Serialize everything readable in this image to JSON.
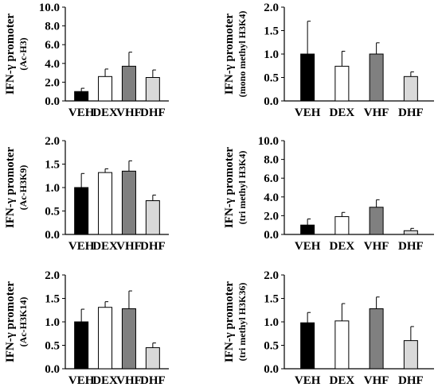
{
  "colors": {
    "VEH": "#000000",
    "DEX": "#ffffff",
    "VHF": "#808080",
    "DHF": "#d9d9d9"
  },
  "chart_data": [
    {
      "type": "bar",
      "categories": [
        "VEH",
        "DEX",
        "VHF",
        "DHF"
      ],
      "ylabel": "IFN-γ promoter",
      "ysub": "(Ac-H3)",
      "ylim": [
        0,
        10
      ],
      "yticks": [
        "0.0",
        "2.0",
        "4.0",
        "6.0",
        "8.0",
        "10.0"
      ],
      "values": [
        1.0,
        2.6,
        3.7,
        2.5
      ],
      "errors": [
        0.35,
        0.8,
        1.5,
        0.8
      ]
    },
    {
      "type": "bar",
      "categories": [
        "VEH",
        "DEX",
        "VHF",
        "DHF"
      ],
      "ylabel": "IFN-γ promoter",
      "ysub": "(mono methyl H3K4)",
      "ylim": [
        0,
        2
      ],
      "yticks": [
        "0.0",
        "0.5",
        "1.0",
        "1.5",
        "2.0"
      ],
      "values": [
        1.0,
        0.74,
        1.0,
        0.52
      ],
      "errors": [
        0.7,
        0.32,
        0.24,
        0.1
      ]
    },
    {
      "type": "bar",
      "categories": [
        "VEH",
        "DEX",
        "VHF",
        "DHF"
      ],
      "ylabel": "IFN-γ promoter",
      "ysub": "(Ac-H3K9)",
      "ylim": [
        0,
        2
      ],
      "yticks": [
        "0.0",
        "0.5",
        "1.0",
        "1.5",
        "2.0"
      ],
      "values": [
        1.0,
        1.32,
        1.35,
        0.72
      ],
      "errors": [
        0.3,
        0.08,
        0.22,
        0.12
      ]
    },
    {
      "type": "bar",
      "categories": [
        "VEH",
        "DEX",
        "VHF",
        "DHF"
      ],
      "ylabel": "IFN-γ promoter",
      "ysub": "(tri methyl H3K4)",
      "ylim": [
        0,
        10
      ],
      "yticks": [
        "0.0",
        "2.0",
        "4.0",
        "6.0",
        "8.0",
        "10.0"
      ],
      "values": [
        1.0,
        1.9,
        2.9,
        0.4
      ],
      "errors": [
        0.65,
        0.45,
        0.8,
        0.25
      ]
    },
    {
      "type": "bar",
      "categories": [
        "VEH",
        "DEX",
        "VHF",
        "DHF"
      ],
      "ylabel": "IFN-γ promoter",
      "ysub": "(Ac-H3K14)",
      "ylim": [
        0,
        2
      ],
      "yticks": [
        "0.0",
        "0.5",
        "1.0",
        "1.5",
        "2.0"
      ],
      "values": [
        1.0,
        1.31,
        1.28,
        0.45
      ],
      "errors": [
        0.27,
        0.12,
        0.38,
        0.1
      ]
    },
    {
      "type": "bar",
      "categories": [
        "VEH",
        "DEX",
        "VHF",
        "DHF"
      ],
      "ylabel": "IFN-γ promoter",
      "ysub": "(tri methyl H3K36)",
      "ylim": [
        0,
        2
      ],
      "yticks": [
        "0.0",
        "0.5",
        "1.0",
        "1.5",
        "2.0"
      ],
      "values": [
        0.98,
        1.02,
        1.28,
        0.6
      ],
      "errors": [
        0.22,
        0.37,
        0.25,
        0.3
      ]
    }
  ]
}
